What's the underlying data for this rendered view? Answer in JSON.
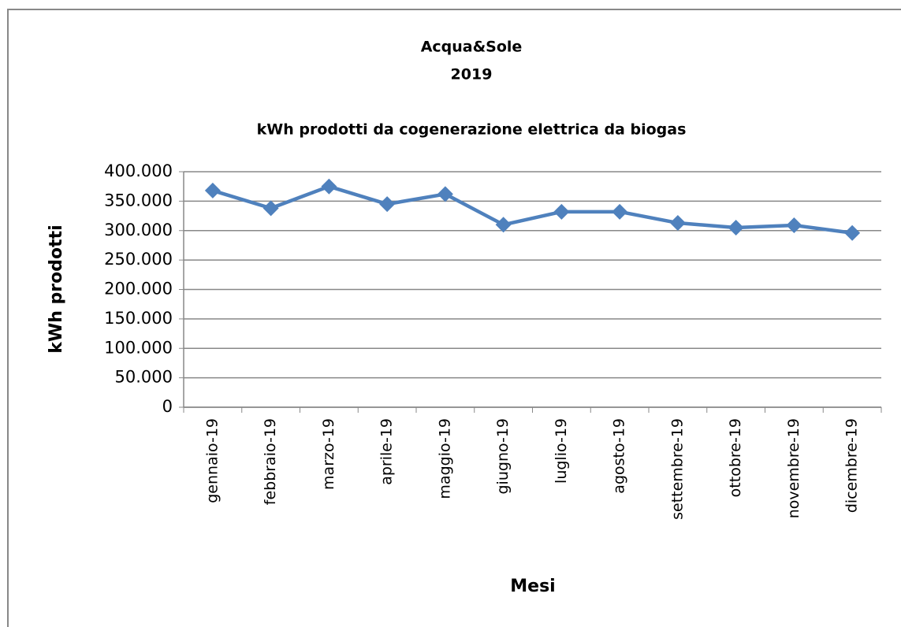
{
  "chart_data": {
    "type": "line",
    "title": [
      "Acqua&Sole",
      "2019"
    ],
    "subtitle": "kWh prodotti da cogenerazione elettrica da biogas",
    "y_label": "kWh prodotti",
    "x_label": "Mesi",
    "categories": [
      "gennaio-19",
      "febbraio-19",
      "marzo-19",
      "aprile-19",
      "maggio-19",
      "giugno-19",
      "luglio-19",
      "agosto-19",
      "settembre-19",
      "ottobre-19",
      "novembre-19",
      "dicembre-19"
    ],
    "series": [
      {
        "color": "#4f81bd",
        "values": [
          368000,
          338000,
          375000,
          345000,
          362000,
          310000,
          332000,
          332000,
          313000,
          305000,
          309000,
          296000
        ]
      }
    ],
    "ylim": [
      0,
      400000
    ],
    "yticks": [
      0,
      {
        "value": 50000,
        "label": "50.000"
      },
      {
        "value": 100000,
        "label": "100.000"
      },
      {
        "value": 150000,
        "label": "150.000"
      },
      {
        "value": 200000,
        "label": "200.000"
      },
      {
        "value": 250000,
        "label": "250.000"
      },
      {
        "value": 300000,
        "label": "300.000"
      },
      {
        "value": 350000,
        "label": "350.000"
      },
      {
        "value": 400000,
        "label": "400.000"
      }
    ],
    "grid": true
  }
}
